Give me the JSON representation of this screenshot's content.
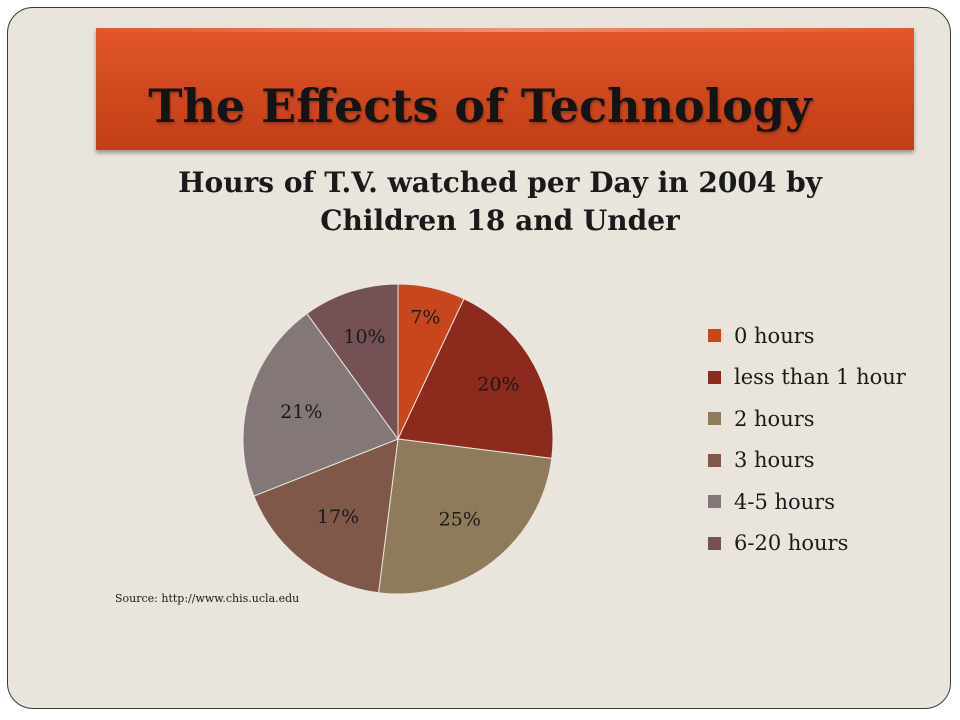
{
  "slide": {
    "title": "The Effects of Technology",
    "source": "Source: http://www.chis.ucla.edu"
  },
  "colors": {
    "banner": "#d24a1f",
    "background": "#e9e5dc"
  },
  "chart_data": {
    "type": "pie",
    "title_lines": [
      "Hours of T.V. watched per Day in 2004 by",
      "Children 18 and Under"
    ],
    "legend_position": "right",
    "categories": [
      "0 hours",
      "less than 1 hour",
      "2 hours",
      "3 hours",
      "4-5 hours",
      "6-20 hours"
    ],
    "values": [
      7,
      20,
      25,
      17,
      21,
      10
    ],
    "labels": [
      "7%",
      "20%",
      "25%",
      "17%",
      "21%",
      "10%"
    ],
    "colors": [
      "#c8461d",
      "#8c2a1d",
      "#8f7b5b",
      "#80584a",
      "#837778",
      "#745154"
    ]
  }
}
